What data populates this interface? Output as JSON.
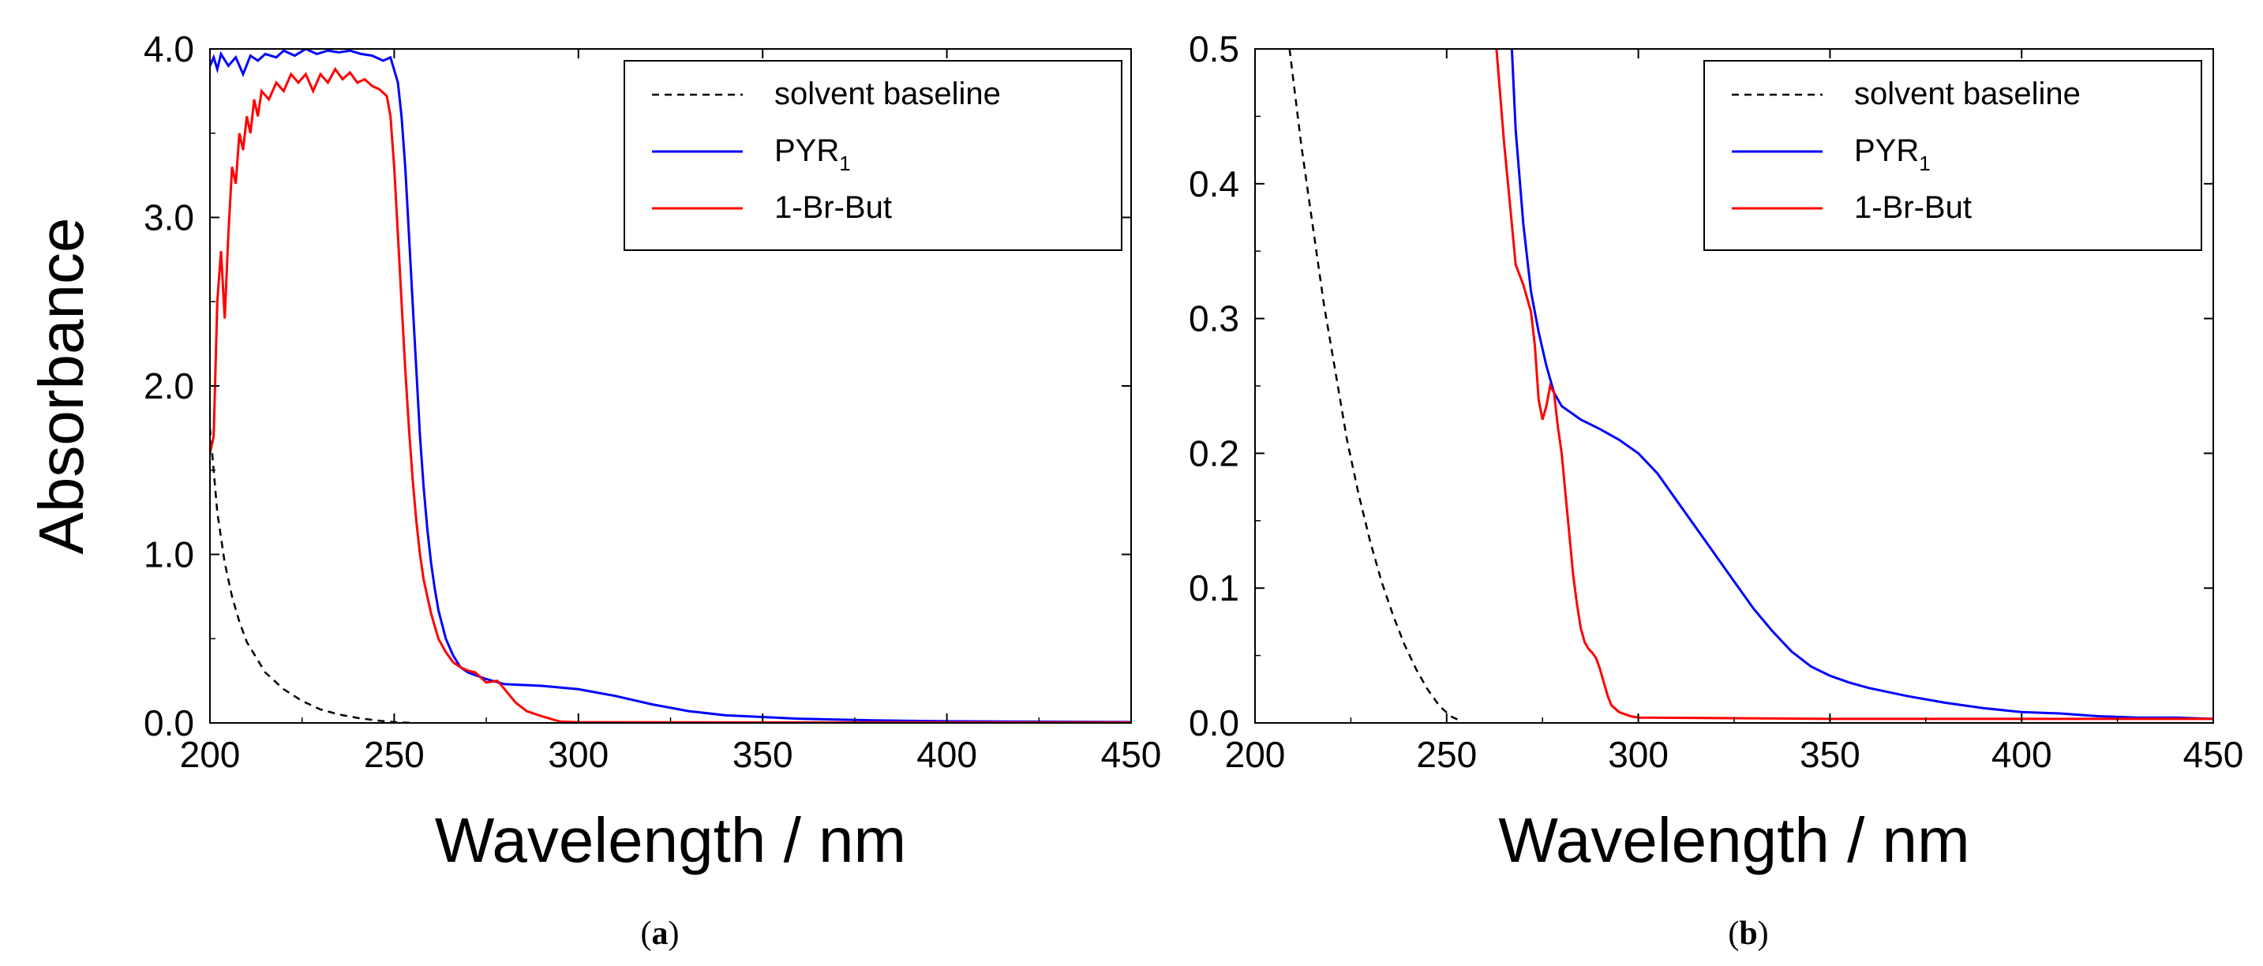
{
  "figure": {
    "captions": [
      {
        "open": "(",
        "letter": "a",
        "close": ")"
      },
      {
        "open": "(",
        "letter": "b",
        "close": ")"
      }
    ]
  },
  "chart_data": [
    {
      "type": "line",
      "panel": "a",
      "xlabel": "Wavelength / nm",
      "ylabel": "Absorbance",
      "xlim": [
        200,
        450
      ],
      "ylim": [
        0,
        4
      ],
      "xticks": [
        200,
        250,
        300,
        350,
        400,
        450
      ],
      "yticks": [
        0,
        1,
        2,
        3,
        4
      ],
      "xtick_labels": [
        "200",
        "250",
        "300",
        "350",
        "400",
        "450"
      ],
      "ytick_labels": [
        "0.0",
        "1.0",
        "2.0",
        "3.0",
        "4.0"
      ],
      "legend_position": "top-right",
      "series": [
        {
          "name": "solvent baseline",
          "sub": "",
          "color": "#000000",
          "dash": true,
          "points": [
            [
              200,
              1.75
            ],
            [
              202,
              1.25
            ],
            [
              204,
              0.95
            ],
            [
              206,
              0.75
            ],
            [
              208,
              0.6
            ],
            [
              210,
              0.48
            ],
            [
              215,
              0.3
            ],
            [
              220,
              0.2
            ],
            [
              225,
              0.13
            ],
            [
              230,
              0.08
            ],
            [
              235,
              0.05
            ],
            [
              240,
              0.03
            ],
            [
              245,
              0.015
            ],
            [
              250,
              0.005
            ],
            [
              255,
              0.0
            ]
          ]
        },
        {
          "name": "PYR",
          "sub": "1",
          "color": "#0000ff",
          "dash": false,
          "points": [
            [
              200,
              3.9
            ],
            [
              201,
              3.95
            ],
            [
              202,
              3.88
            ],
            [
              203,
              3.97
            ],
            [
              205,
              3.9
            ],
            [
              207,
              3.95
            ],
            [
              209,
              3.85
            ],
            [
              211,
              3.96
            ],
            [
              213,
              3.93
            ],
            [
              215,
              3.97
            ],
            [
              218,
              3.95
            ],
            [
              220,
              3.99
            ],
            [
              223,
              3.96
            ],
            [
              226,
              4.0
            ],
            [
              229,
              3.97
            ],
            [
              232,
              3.99
            ],
            [
              235,
              3.98
            ],
            [
              238,
              3.99
            ],
            [
              241,
              3.97
            ],
            [
              244,
              3.96
            ],
            [
              247,
              3.93
            ],
            [
              249,
              3.95
            ],
            [
              251,
              3.8
            ],
            [
              252,
              3.6
            ],
            [
              253,
              3.3
            ],
            [
              254,
              2.9
            ],
            [
              255,
              2.5
            ],
            [
              256,
              2.1
            ],
            [
              257,
              1.7
            ],
            [
              258,
              1.4
            ],
            [
              259,
              1.15
            ],
            [
              260,
              0.95
            ],
            [
              261,
              0.8
            ],
            [
              262,
              0.67
            ],
            [
              264,
              0.5
            ],
            [
              266,
              0.4
            ],
            [
              268,
              0.33
            ],
            [
              270,
              0.3
            ],
            [
              275,
              0.26
            ],
            [
              280,
              0.23
            ],
            [
              290,
              0.22
            ],
            [
              300,
              0.2
            ],
            [
              310,
              0.16
            ],
            [
              320,
              0.11
            ],
            [
              330,
              0.07
            ],
            [
              340,
              0.045
            ],
            [
              350,
              0.035
            ],
            [
              360,
              0.025
            ],
            [
              380,
              0.015
            ],
            [
              400,
              0.01
            ],
            [
              450,
              0.005
            ]
          ]
        },
        {
          "name": "1-Br-But",
          "sub": "",
          "color": "#ff0000",
          "dash": false,
          "points": [
            [
              200,
              1.6
            ],
            [
              201,
              1.7
            ],
            [
              202,
              2.5
            ],
            [
              203,
              2.8
            ],
            [
              204,
              2.4
            ],
            [
              205,
              2.9
            ],
            [
              206,
              3.3
            ],
            [
              207,
              3.2
            ],
            [
              208,
              3.5
            ],
            [
              209,
              3.4
            ],
            [
              210,
              3.6
            ],
            [
              211,
              3.5
            ],
            [
              212,
              3.7
            ],
            [
              213,
              3.6
            ],
            [
              214,
              3.75
            ],
            [
              216,
              3.7
            ],
            [
              218,
              3.8
            ],
            [
              220,
              3.75
            ],
            [
              222,
              3.85
            ],
            [
              224,
              3.8
            ],
            [
              226,
              3.85
            ],
            [
              228,
              3.75
            ],
            [
              230,
              3.85
            ],
            [
              232,
              3.8
            ],
            [
              234,
              3.88
            ],
            [
              236,
              3.82
            ],
            [
              238,
              3.86
            ],
            [
              240,
              3.8
            ],
            [
              242,
              3.82
            ],
            [
              244,
              3.78
            ],
            [
              246,
              3.76
            ],
            [
              248,
              3.72
            ],
            [
              249,
              3.6
            ],
            [
              250,
              3.3
            ],
            [
              251,
              2.9
            ],
            [
              252,
              2.5
            ],
            [
              253,
              2.1
            ],
            [
              254,
              1.75
            ],
            [
              255,
              1.45
            ],
            [
              256,
              1.2
            ],
            [
              257,
              1.0
            ],
            [
              258,
              0.85
            ],
            [
              260,
              0.65
            ],
            [
              262,
              0.5
            ],
            [
              264,
              0.42
            ],
            [
              266,
              0.36
            ],
            [
              268,
              0.33
            ],
            [
              270,
              0.31
            ],
            [
              272,
              0.3
            ],
            [
              275,
              0.24
            ],
            [
              278,
              0.25
            ],
            [
              280,
              0.2
            ],
            [
              283,
              0.12
            ],
            [
              286,
              0.07
            ],
            [
              290,
              0.04
            ],
            [
              295,
              0.008
            ],
            [
              300,
              0.004
            ],
            [
              350,
              0.003
            ],
            [
              450,
              0.003
            ]
          ]
        }
      ]
    },
    {
      "type": "line",
      "panel": "b",
      "xlabel": "Wavelength / nm",
      "ylabel": "",
      "xlim": [
        200,
        450
      ],
      "ylim": [
        0,
        0.5
      ],
      "xticks": [
        200,
        250,
        300,
        350,
        400,
        450
      ],
      "yticks": [
        0,
        0.1,
        0.2,
        0.3,
        0.4,
        0.5
      ],
      "xtick_labels": [
        "200",
        "250",
        "300",
        "350",
        "400",
        "450"
      ],
      "ytick_labels": [
        "0.0",
        "0.1",
        "0.2",
        "0.3",
        "0.4",
        "0.5"
      ],
      "legend_position": "top-right",
      "series": [
        {
          "name": "solvent baseline",
          "sub": "",
          "color": "#000000",
          "dash": true,
          "points": [
            [
              209,
              0.5
            ],
            [
              212,
              0.43
            ],
            [
              215,
              0.37
            ],
            [
              218,
              0.31
            ],
            [
              221,
              0.26
            ],
            [
              224,
              0.21
            ],
            [
              227,
              0.17
            ],
            [
              230,
              0.135
            ],
            [
              233,
              0.105
            ],
            [
              236,
              0.08
            ],
            [
              239,
              0.058
            ],
            [
              242,
              0.04
            ],
            [
              245,
              0.025
            ],
            [
              248,
              0.013
            ],
            [
              251,
              0.005
            ],
            [
              254,
              0.001
            ]
          ]
        },
        {
          "name": "PYR",
          "sub": "1",
          "color": "#0000ff",
          "dash": false,
          "points": [
            [
              267,
              0.5
            ],
            [
              268,
              0.44
            ],
            [
              270,
              0.37
            ],
            [
              272,
              0.32
            ],
            [
              274,
              0.29
            ],
            [
              276,
              0.265
            ],
            [
              278,
              0.245
            ],
            [
              280,
              0.235
            ],
            [
              285,
              0.225
            ],
            [
              290,
              0.218
            ],
            [
              295,
              0.21
            ],
            [
              300,
              0.2
            ],
            [
              305,
              0.185
            ],
            [
              310,
              0.165
            ],
            [
              315,
              0.145
            ],
            [
              320,
              0.125
            ],
            [
              325,
              0.105
            ],
            [
              330,
              0.085
            ],
            [
              335,
              0.068
            ],
            [
              340,
              0.053
            ],
            [
              345,
              0.042
            ],
            [
              350,
              0.035
            ],
            [
              355,
              0.03
            ],
            [
              360,
              0.026
            ],
            [
              370,
              0.02
            ],
            [
              380,
              0.015
            ],
            [
              390,
              0.011
            ],
            [
              400,
              0.008
            ],
            [
              410,
              0.007
            ],
            [
              420,
              0.005
            ],
            [
              430,
              0.004
            ],
            [
              440,
              0.004
            ],
            [
              450,
              0.003
            ]
          ]
        },
        {
          "name": "1-Br-But",
          "sub": "",
          "color": "#ff0000",
          "dash": false,
          "points": [
            [
              263,
              0.5
            ],
            [
              265,
              0.43
            ],
            [
              267,
              0.37
            ],
            [
              268,
              0.34
            ],
            [
              270,
              0.325
            ],
            [
              272,
              0.305
            ],
            [
              273,
              0.28
            ],
            [
              274,
              0.24
            ],
            [
              275,
              0.225
            ],
            [
              276,
              0.235
            ],
            [
              277,
              0.25
            ],
            [
              278,
              0.245
            ],
            [
              279,
              0.22
            ],
            [
              280,
              0.2
            ],
            [
              281,
              0.17
            ],
            [
              282,
              0.14
            ],
            [
              283,
              0.11
            ],
            [
              284,
              0.088
            ],
            [
              285,
              0.07
            ],
            [
              286,
              0.06
            ],
            [
              287,
              0.055
            ],
            [
              288,
              0.052
            ],
            [
              289,
              0.048
            ],
            [
              290,
              0.04
            ],
            [
              291,
              0.03
            ],
            [
              292,
              0.02
            ],
            [
              293,
              0.013
            ],
            [
              295,
              0.008
            ],
            [
              298,
              0.005
            ],
            [
              300,
              0.004
            ],
            [
              350,
              0.003
            ],
            [
              400,
              0.003
            ],
            [
              450,
              0.003
            ]
          ]
        }
      ]
    }
  ]
}
